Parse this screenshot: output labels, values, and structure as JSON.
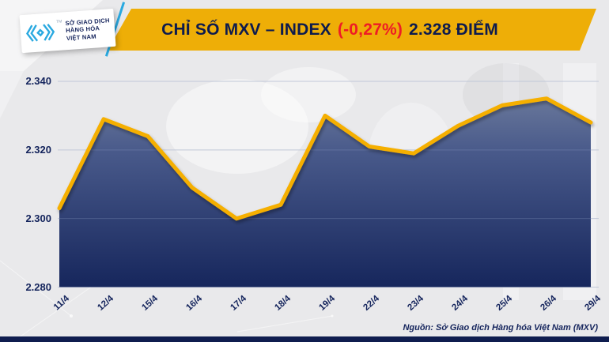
{
  "header": {
    "logo": {
      "icon": "mxv-chevron-logo",
      "icon_color": "#2aa9e0",
      "line1": "SỞ GIAO DỊCH",
      "line2": "HÀNG HÓA",
      "line3": "VIỆT NAM",
      "tm": "TM"
    },
    "banner": {
      "title_main": "CHỈ SỐ MXV – INDEX",
      "title_change": "(-0,27%)",
      "title_value": "2.328 ĐIỂM",
      "bg_color": "#eeae07",
      "text_color": "#0d1b4e",
      "change_color": "#ee1c25"
    }
  },
  "chart_data": {
    "type": "area",
    "title": "CHỈ SỐ MXV – INDEX (-0,27%) 2.328 ĐIỂM",
    "categories": [
      "11/4",
      "12/4",
      "15/4",
      "16/4",
      "17/4",
      "18/4",
      "19/4",
      "22/4",
      "23/4",
      "24/4",
      "25/4",
      "26/4",
      "29/4"
    ],
    "values": [
      2303,
      2329,
      2324,
      2309,
      2300,
      2304,
      2330,
      2321,
      2319,
      2327,
      2333,
      2335,
      2328
    ],
    "current_value": 2328,
    "change_percent": "-0,27%",
    "y_axis": {
      "tick_labels": [
        "2.340",
        "2.320",
        "2.300",
        "2.280"
      ],
      "tick_values": [
        2340,
        2320,
        2300,
        2280
      ],
      "range": [
        2280,
        2340
      ]
    },
    "grid": "horizontal",
    "legend": "none",
    "line_color": "#f5af00",
    "area_gradient_top": "#72809f",
    "area_gradient_bottom": "#16265c",
    "gridline_color": "#cdd1da"
  },
  "footer": {
    "source": "Nguồn: Sở Giao dịch Hàng hóa Việt Nam (MXV)"
  }
}
